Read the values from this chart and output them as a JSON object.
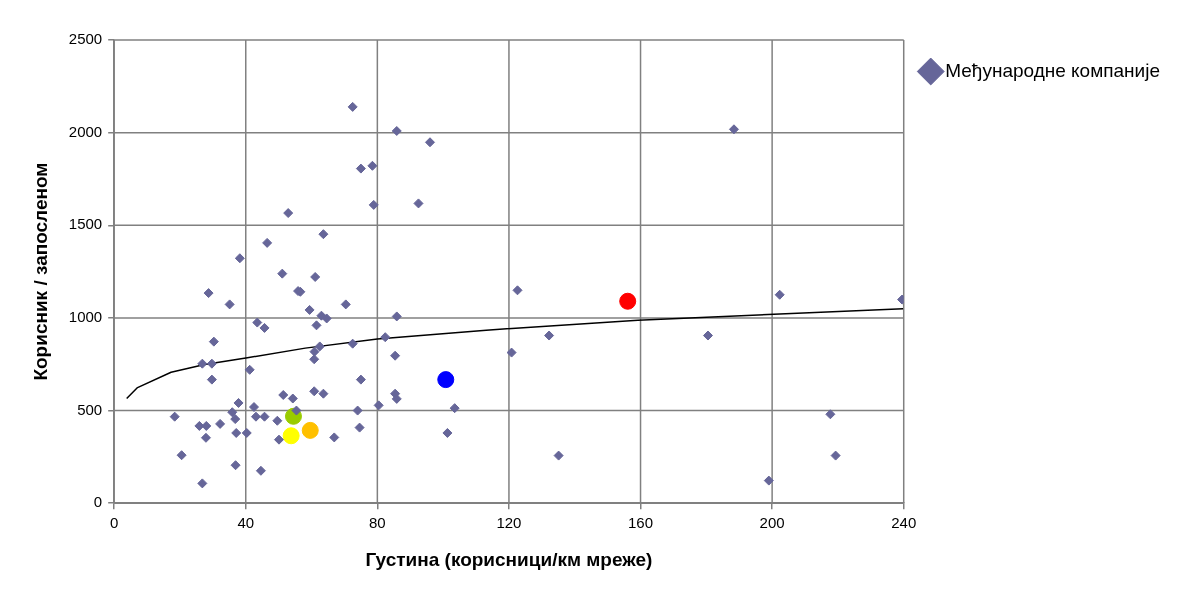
{
  "chart_data": {
    "type": "scatter",
    "xlabel": "Густина (корисници/км мреже)",
    "ylabel": "Корисник / запосленом",
    "xlim": [
      0,
      240
    ],
    "xticks": [
      0,
      40,
      80,
      120,
      160,
      200,
      240
    ],
    "ylim": [
      0,
      2500
    ],
    "yticks": [
      0,
      500,
      1000,
      1500,
      2000,
      2500
    ],
    "grid": true,
    "legend": "right",
    "series": [
      {
        "name": "Међународне компаније",
        "color": "#666699",
        "marker": "diamond",
        "x": [
          52.9,
          46.5,
          38.2,
          51.1,
          55.9,
          28.7,
          35.1,
          43.5,
          45.7,
          30.3,
          26.8,
          29.7,
          29.7,
          41.2,
          51.4,
          54.3,
          37.8,
          18.4,
          42.5,
          35.9,
          36.8,
          43.1,
          45.7,
          49.6,
          25.9,
          28.0,
          32.2,
          37.1,
          40.3,
          27.9,
          50.1,
          20.5,
          36.9,
          44.6,
          26.8,
          72.5,
          85.9,
          96.0,
          75.0,
          78.5,
          78.9,
          92.5,
          63.6,
          61.1,
          56.6,
          70.4,
          59.4,
          63.0,
          64.6,
          61.5,
          85.9,
          82.4,
          72.5,
          62.5,
          60.9,
          60.8,
          85.4,
          75.0,
          60.8,
          63.6,
          85.4,
          85.9,
          55.4,
          74.0,
          80.4,
          103.5,
          74.6,
          66.9,
          101.3,
          188.4,
          122.6,
          120.8,
          132.2,
          135.1,
          180.5,
          202.3,
          239.5,
          217.7,
          219.3,
          199.0
        ],
        "values": [
          1566,
          1405,
          1322,
          1239,
          1145,
          1134,
          1073,
          975,
          946,
          872,
          753,
          753,
          667,
          720,
          584,
          565,
          541,
          467,
          519,
          491,
          454,
          467,
          467,
          445,
          417,
          417,
          428,
          379,
          379,
          353,
          343,
          259,
          205,
          175,
          107,
          2139,
          2009,
          1948,
          1806,
          1821,
          1610,
          1618,
          1452,
          1221,
          1141,
          1073,
          1043,
          1012,
          997,
          960,
          1008,
          896,
          861,
          846,
          818,
          777,
          796,
          667,
          604,
          591,
          591,
          563,
          500,
          500,
          528,
          513,
          408,
          355,
          379,
          2018,
          1149,
          813,
          905,
          257,
          905,
          1125,
          1099,
          480,
          257,
          122
        ]
      },
      {
        "color": "#0000ff",
        "marker": "circle",
        "x": [
          100.8
        ],
        "values": [
          667
        ]
      },
      {
        "color": "#ff0000",
        "marker": "circle",
        "x": [
          156.1
        ],
        "values": [
          1090
        ]
      },
      {
        "color": "#ffff00",
        "marker": "circle",
        "x": [
          53.8
        ],
        "values": [
          364
        ]
      },
      {
        "color": "#99cc00",
        "marker": "circle",
        "x": [
          54.5
        ],
        "values": [
          469
        ]
      },
      {
        "color": "#ffc000",
        "marker": "circle",
        "x": [
          59.6
        ],
        "values": [
          393
        ]
      },
      {
        "type": "line",
        "color": "#000000",
        "marker": "none",
        "x": [
          3.8,
          7.1,
          17.3,
          27.5,
          40.5,
          58.1,
          80,
          113.1,
          159.2,
          202.3,
          239.8
        ],
        "values": [
          565,
          624,
          707,
          749,
          785,
          837,
          886,
          934,
          988,
          1021,
          1049
        ]
      }
    ]
  }
}
